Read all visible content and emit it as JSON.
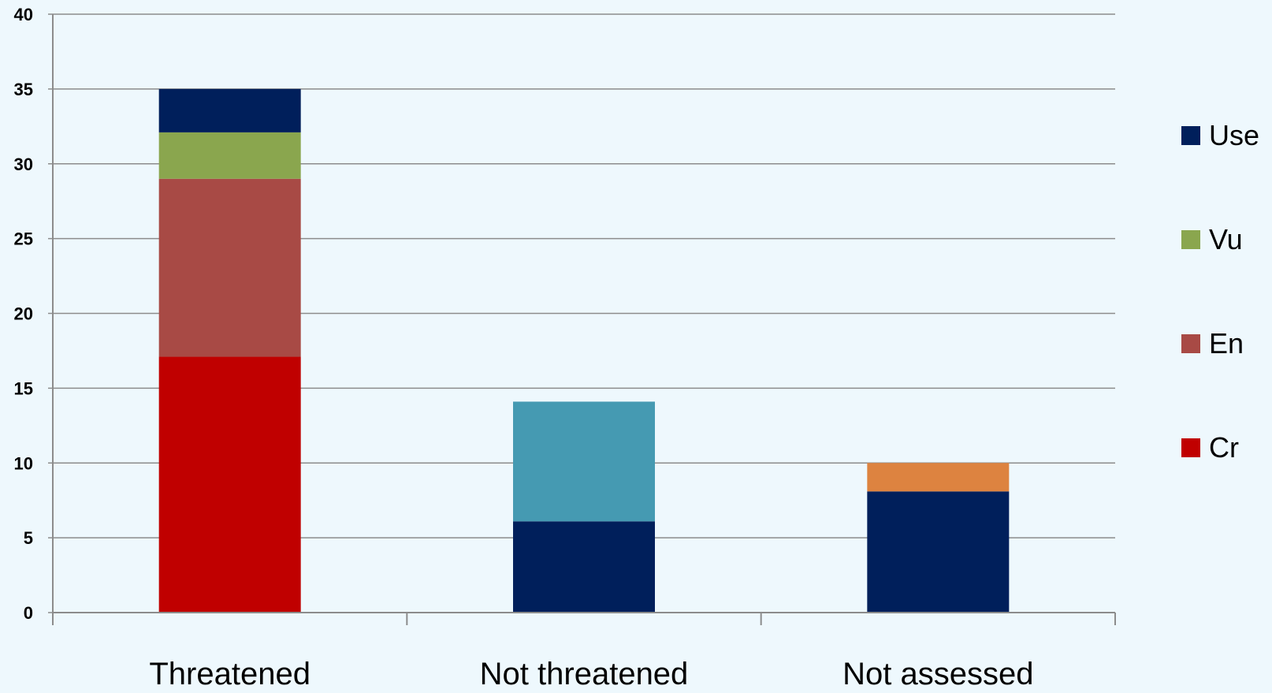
{
  "chart_data": {
    "type": "bar",
    "stacked": true,
    "categories": [
      "Threatened",
      "Not threatened",
      "Not assessed"
    ],
    "ylim": [
      0,
      40
    ],
    "yticks": [
      0,
      5,
      10,
      15,
      20,
      25,
      30,
      35,
      40
    ],
    "grid": true,
    "legend_position": "right",
    "legend": [
      {
        "label": "Use",
        "color": "#001f5b"
      },
      {
        "label": "Vu",
        "color": "#8aa64e"
      },
      {
        "label": "En",
        "color": "#a84a45"
      },
      {
        "label": "Cr",
        "color": "#c00000"
      }
    ],
    "stacks": [
      {
        "category": "Threatened",
        "segments": [
          {
            "value": 17.1,
            "color": "#c00000"
          },
          {
            "value": 11.9,
            "color": "#a84a45"
          },
          {
            "value": 3.1,
            "color": "#8aa64e"
          },
          {
            "value": 2.9,
            "color": "#001f5b"
          }
        ]
      },
      {
        "category": "Not threatened",
        "segments": [
          {
            "value": 6.1,
            "color": "#001f5b"
          },
          {
            "value": 8.0,
            "color": "#459ab2"
          }
        ]
      },
      {
        "category": "Not assessed",
        "segments": [
          {
            "value": 8.1,
            "color": "#001f5b"
          },
          {
            "value": 1.9,
            "color": "#dd8340"
          }
        ]
      }
    ],
    "title": "",
    "xlabel": "",
    "ylabel": ""
  }
}
